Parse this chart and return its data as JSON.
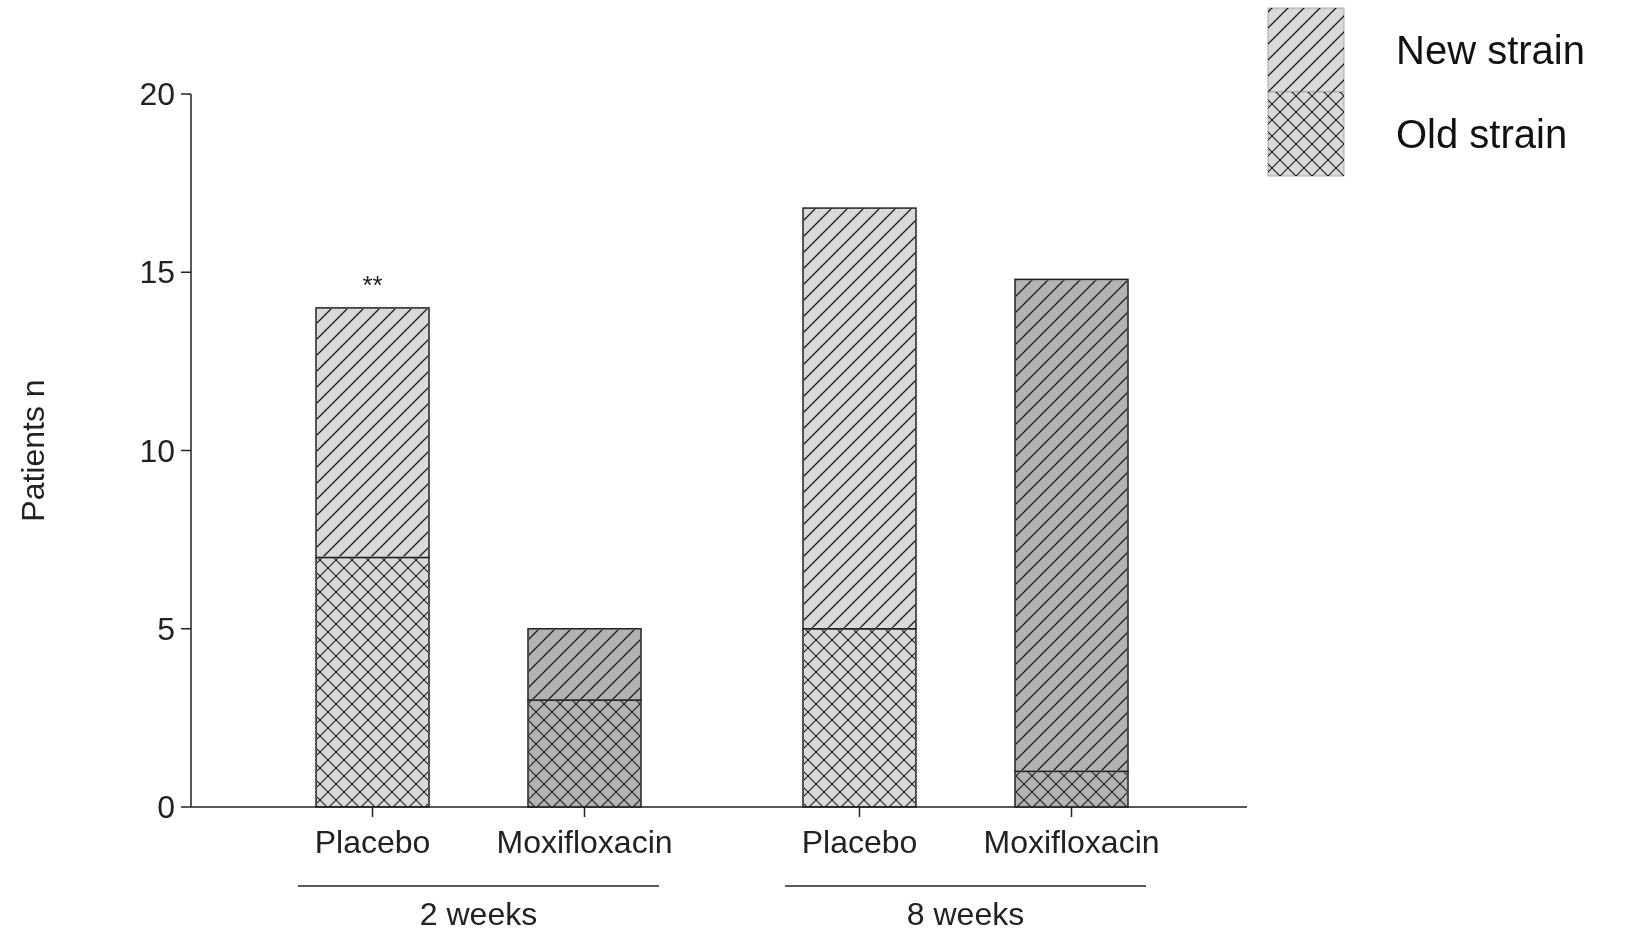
{
  "chart_data": {
    "type": "bar",
    "stacked": true,
    "ylabel": "Patients n",
    "categories": [
      "Placebo",
      "Moxifloxacin",
      "Placebo",
      "Moxifloxacin"
    ],
    "series": [
      {
        "name": "Old strain",
        "color": "#d9d9d9",
        "colors": [
          "#d9d9d9",
          "#b3b3b3",
          "#d9d9d9",
          "#b3b3b3"
        ],
        "values": [
          7,
          3,
          5,
          1
        ]
      },
      {
        "name": "New strain",
        "color": "#d9d9d9",
        "colors": [
          "#d9d9d9",
          "#b3b3b3",
          "#d9d9d9",
          "#b3b3b3"
        ],
        "values": [
          7,
          2,
          11.8,
          13.8
        ]
      }
    ],
    "ylim": [
      0,
      20
    ],
    "yticks": [
      0,
      5,
      10,
      15,
      20
    ],
    "grid": false,
    "legend": "top right",
    "annotations": [
      {
        "text": "**",
        "x": "Placebo",
        "y": 14
      },
      "2 weeks",
      "8 weeks"
    ]
  }
}
